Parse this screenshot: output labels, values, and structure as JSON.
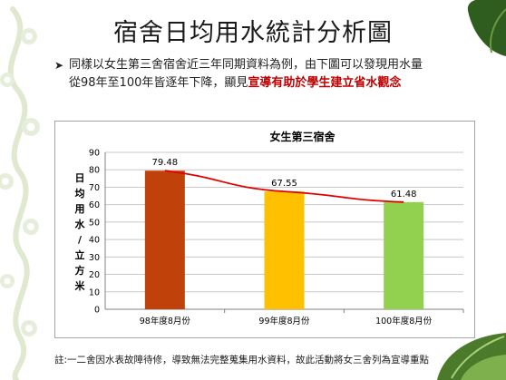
{
  "slide": {
    "title": "宿舍日均用水統計分析圖",
    "bullet_text_1": "同樣以女生第三舍宿舍近三年同期資料為例，由下圖可以發現用水量從98年至100年皆逐年下降，顯見",
    "bullet_highlight": "宣導有助於學生建立省水觀念",
    "footnote": "註:一二舍因水表故障待修，導致無法完整蒐集用水資料，故此活動將女三舍列為宣導重點",
    "accent_color": "#c00000",
    "bullet_icon": "arrow-right-icon"
  },
  "chart_data": {
    "type": "bar",
    "title": "女生第三宿舍",
    "categories": [
      "98年度8月份",
      "99年度8月份",
      "100年度8月份"
    ],
    "values": [
      79.48,
      67.55,
      61.48
    ],
    "value_labels": [
      "79.48",
      "67.55",
      "61.48"
    ],
    "bar_colors": [
      "#c0420a",
      "#ffc000",
      "#92d050"
    ],
    "trendline_color": "#e00000",
    "ylabel": "日均用水/立方米",
    "ylim": [
      0,
      90
    ],
    "yticks": [
      "0",
      "10",
      "20",
      "30",
      "40",
      "50",
      "60",
      "70",
      "80",
      "90"
    ],
    "grid": true,
    "legend": "none"
  }
}
